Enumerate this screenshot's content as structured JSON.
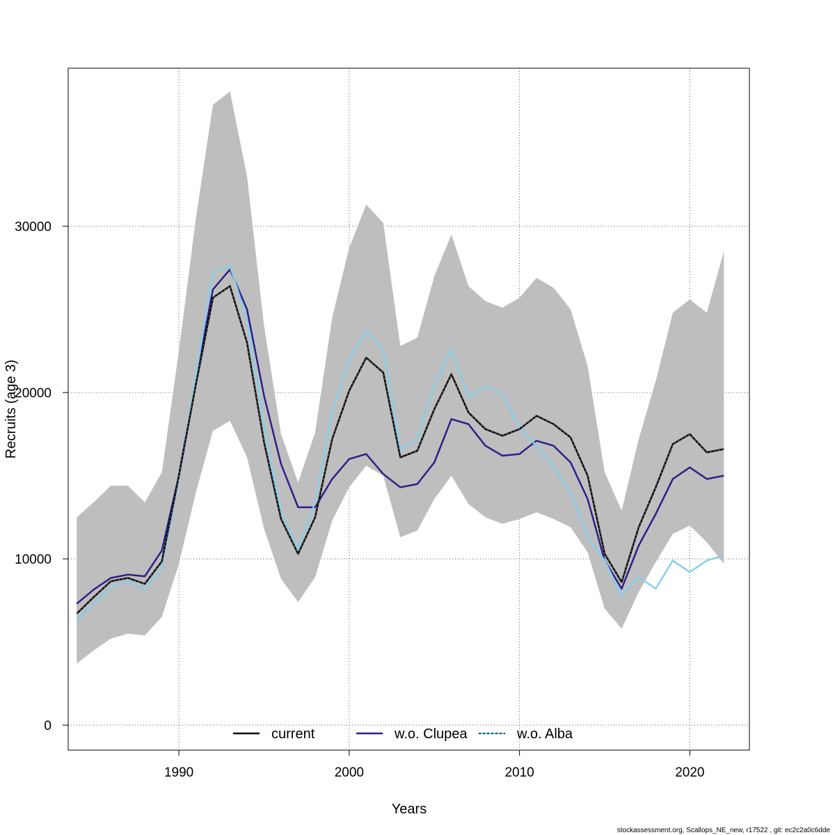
{
  "chart_data": {
    "type": "line",
    "xlabel": "Years",
    "ylabel": "Recruits (age 3)",
    "xlim": [
      1983.5,
      2023.5
    ],
    "ylim": [
      -1500,
      39500
    ],
    "xticks": [
      1990,
      2000,
      2010,
      2020
    ],
    "yticks": [
      0,
      10000,
      20000,
      30000
    ],
    "grid": true,
    "legend_position": "bottom",
    "x": [
      1984,
      1985,
      1986,
      1987,
      1988,
      1989,
      1990,
      1991,
      1992,
      1993,
      1994,
      1995,
      1996,
      1997,
      1998,
      1999,
      2000,
      2001,
      2002,
      2003,
      2004,
      2005,
      2006,
      2007,
      2008,
      2009,
      2010,
      2011,
      2012,
      2013,
      2014,
      2015,
      2016,
      2017,
      2018,
      2019,
      2020,
      2021,
      2022
    ],
    "band": {
      "color": "#bebebe",
      "upper": [
        12500,
        13400,
        14400,
        14400,
        13400,
        15200,
        22500,
        30500,
        37300,
        38100,
        33000,
        24000,
        17500,
        14600,
        17600,
        24500,
        28700,
        31300,
        30200,
        22800,
        23300,
        27000,
        29500,
        26400,
        25500,
        25100,
        25700,
        26900,
        26300,
        25000,
        21600,
        15200,
        12900,
        17200,
        20700,
        24800,
        25600,
        24800,
        28500
      ],
      "lower": [
        3700,
        4500,
        5200,
        5500,
        5400,
        6500,
        9700,
        14000,
        17700,
        18300,
        16100,
        11800,
        8800,
        7400,
        8900,
        12300,
        14300,
        15600,
        15000,
        11300,
        11700,
        13600,
        15000,
        13300,
        12500,
        12100,
        12400,
        12800,
        12400,
        11900,
        10400,
        7000,
        5800,
        8000,
        9800,
        11500,
        12000,
        11000,
        9700
      ]
    },
    "series": [
      {
        "name": "current",
        "color": "#000000",
        "style": "solid",
        "values": [
          6700,
          7700,
          8650,
          8850,
          8500,
          9850,
          15000,
          20500,
          25700,
          26400,
          23000,
          17000,
          12400,
          10300,
          12500,
          17200,
          20100,
          22100,
          21200,
          16100,
          16500,
          19000,
          21100,
          18800,
          17800,
          17400,
          17800,
          18600,
          18100,
          17300,
          15000,
          10300,
          8600,
          11900,
          14300,
          16900,
          17500,
          16400,
          16600
        ]
      },
      {
        "name": "w.o. Clupea",
        "color": "#2c1f88",
        "style": "solid",
        "values": [
          7300,
          8150,
          8850,
          9050,
          8950,
          10500,
          15000,
          20800,
          26200,
          27400,
          25000,
          19800,
          15700,
          13100,
          13100,
          14800,
          16000,
          16300,
          15100,
          14300,
          14500,
          15800,
          18400,
          18100,
          16800,
          16200,
          16300,
          17100,
          16800,
          15800,
          13600,
          9900,
          8200,
          10800,
          12700,
          14800,
          15500,
          14800,
          15000
        ]
      },
      {
        "name": "w.o. Alba",
        "color": "#87ceeb",
        "style": "solid",
        "values": [
          6300,
          7300,
          8300,
          8650,
          8200,
          9500,
          14800,
          21000,
          27200,
          27600,
          24400,
          18000,
          12800,
          10600,
          13400,
          18800,
          22000,
          23700,
          22600,
          16600,
          17200,
          20400,
          22600,
          19700,
          20400,
          19900,
          17900,
          16800,
          15500,
          14000,
          11300,
          9900,
          7800,
          8900,
          8200,
          9900,
          9200,
          9900,
          10200
        ]
      }
    ],
    "legend": {
      "current": "current",
      "clupea": "w.o. Clupea",
      "alba": "w.o. Alba"
    }
  },
  "footer": "stockassessment.org, Scallops_NE_new, r17522 , git: ec2c2a0c6dde"
}
